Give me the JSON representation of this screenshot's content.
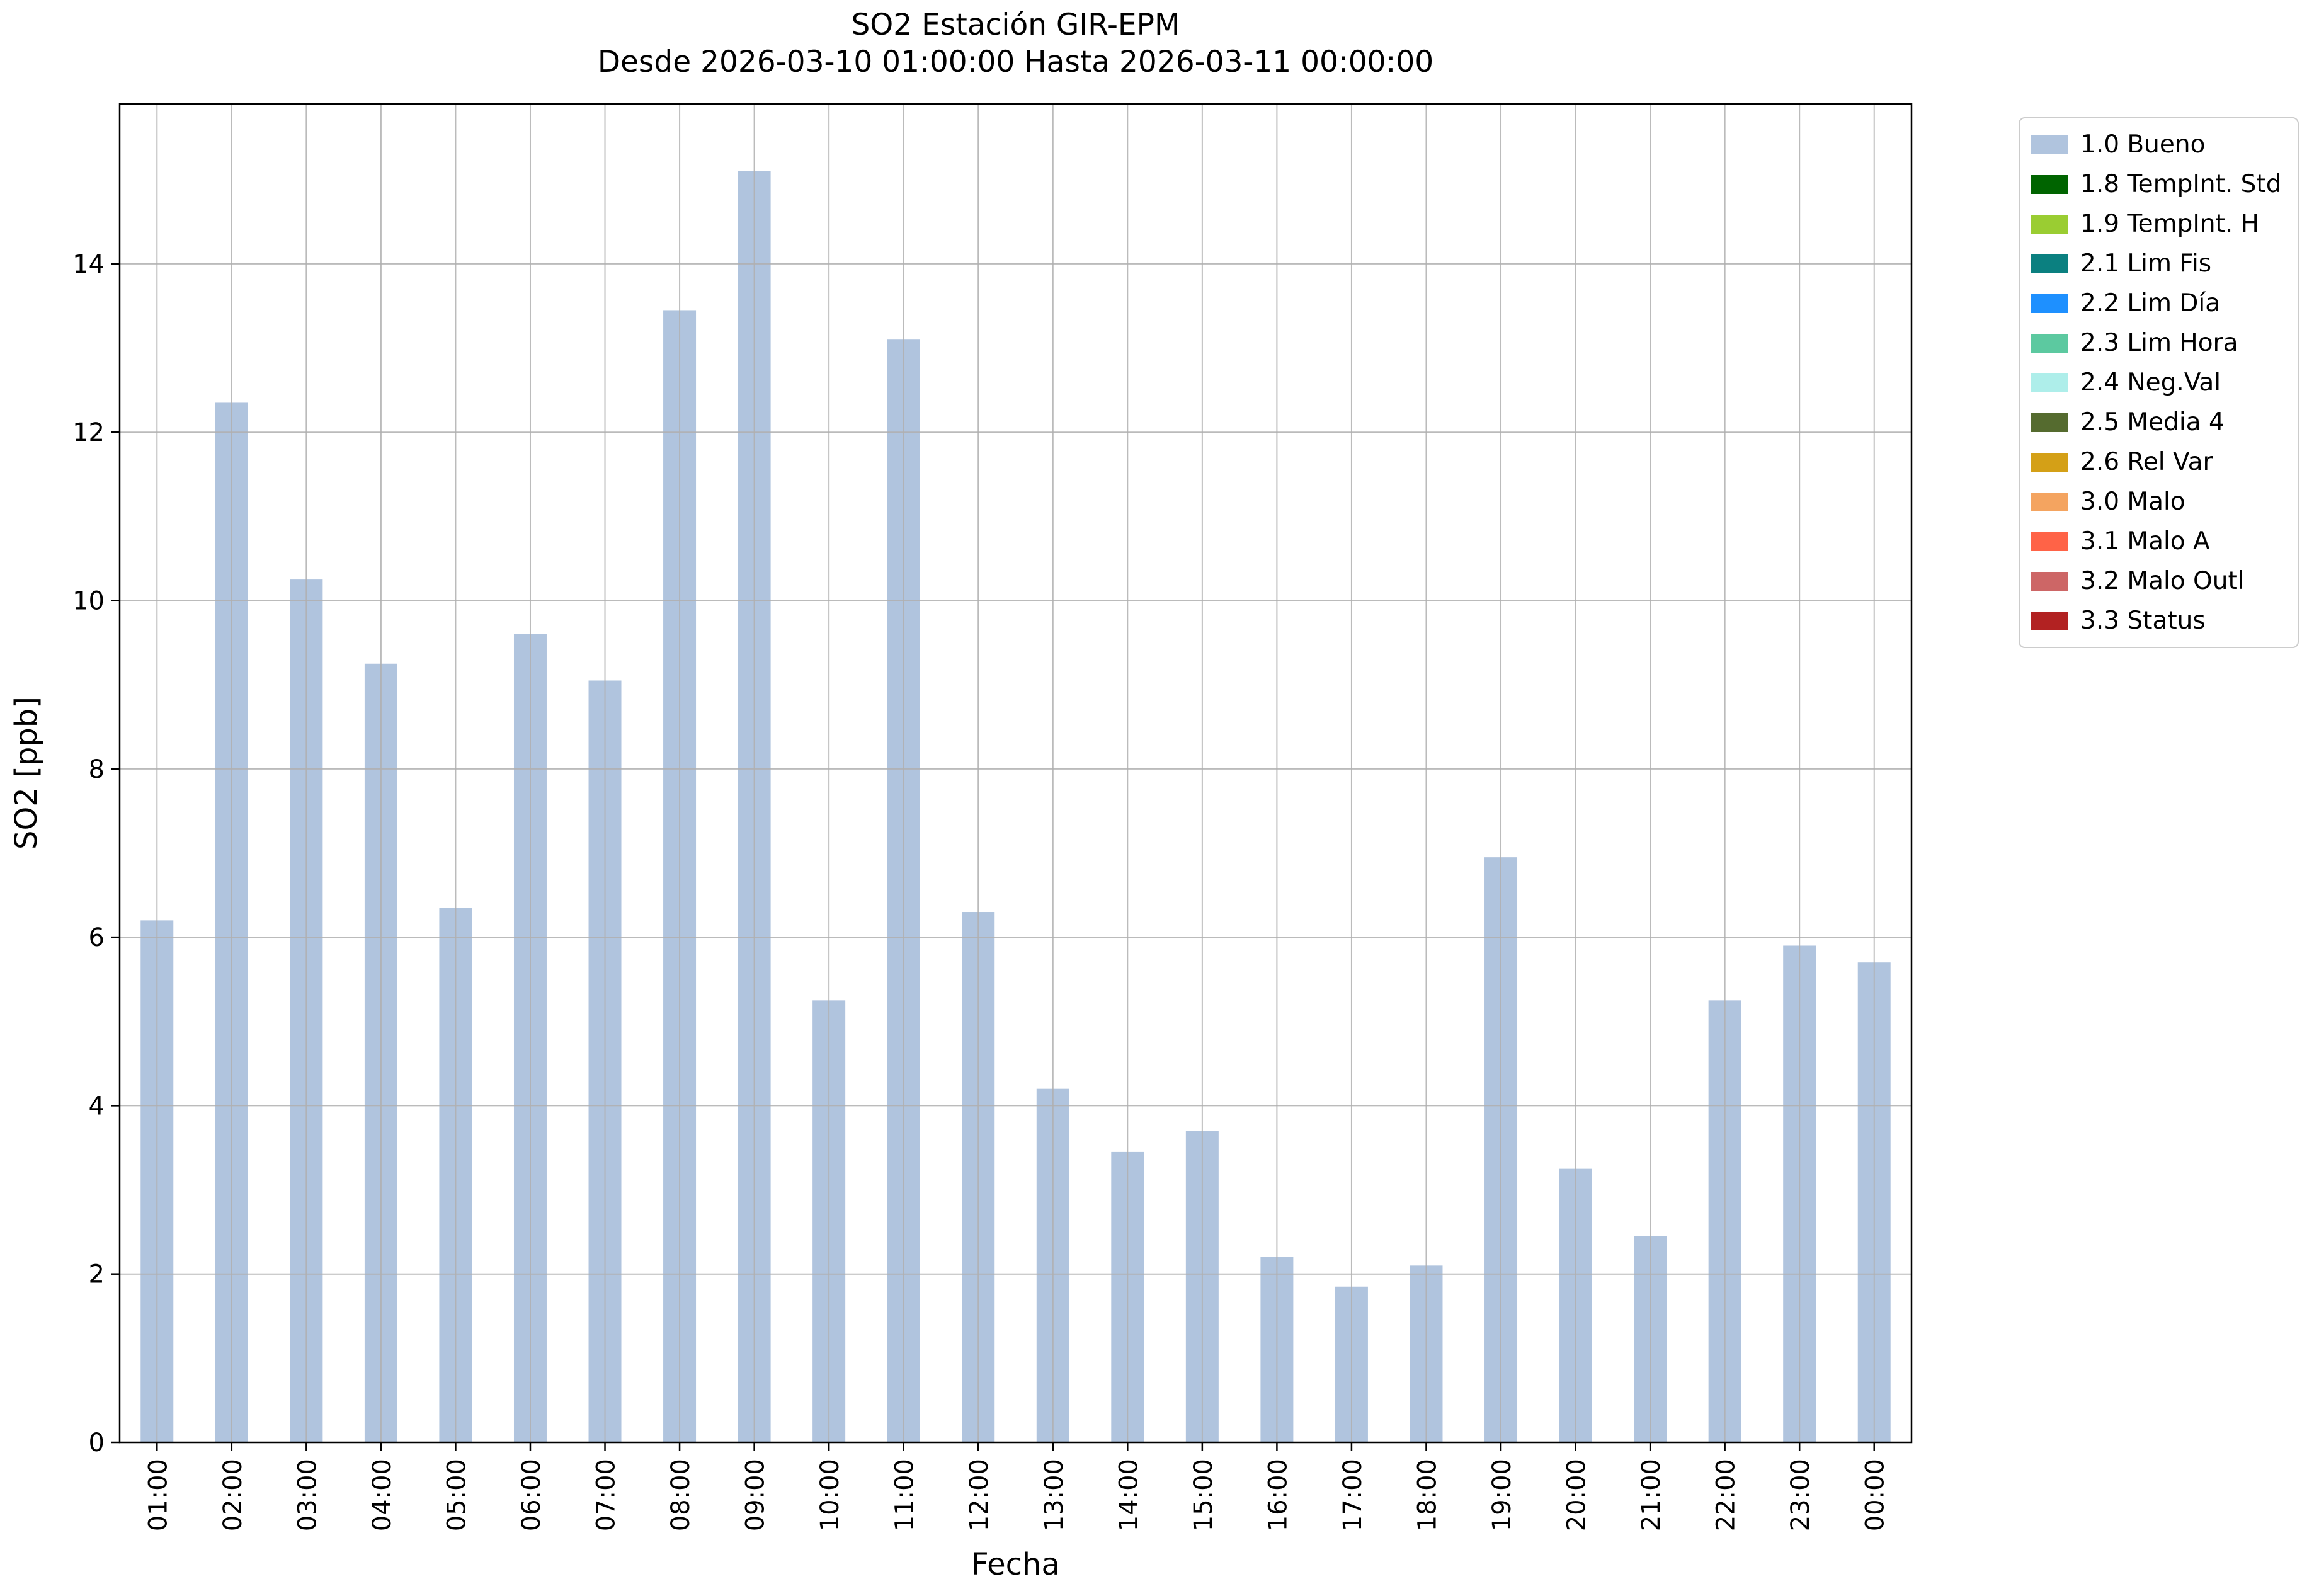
{
  "chart_data": {
    "type": "bar",
    "title": "SO2 Estación GIR-EPM",
    "subtitle": "Desde 2026-03-10 01:00:00 Hasta 2026-03-11 00:00:00",
    "xlabel": "Fecha",
    "ylabel": "SO2 [ppb]",
    "categories": [
      "01:00",
      "02:00",
      "03:00",
      "04:00",
      "05:00",
      "06:00",
      "07:00",
      "08:00",
      "09:00",
      "10:00",
      "11:00",
      "12:00",
      "13:00",
      "14:00",
      "15:00",
      "16:00",
      "17:00",
      "18:00",
      "19:00",
      "20:00",
      "21:00",
      "22:00",
      "23:00",
      "00:00"
    ],
    "values": [
      6.2,
      12.35,
      10.25,
      9.25,
      6.35,
      9.6,
      9.05,
      13.45,
      15.1,
      5.25,
      13.1,
      6.3,
      4.2,
      3.45,
      3.7,
      2.2,
      1.85,
      2.1,
      6.95,
      3.25,
      2.45,
      5.25,
      5.9,
      5.7
    ],
    "bar_color": "#b0c4de",
    "grid_color": "#b0b0b0",
    "axis_color": "#000000",
    "ylim": [
      0,
      15.9
    ],
    "yticks": [
      0,
      2,
      4,
      6,
      8,
      10,
      12,
      14
    ],
    "grid": true,
    "legend_position": "outside upper right",
    "legend": [
      {
        "label": "1.0 Bueno",
        "color": "#b0c4de"
      },
      {
        "label": "1.8 TempInt. Std",
        "color": "#006400"
      },
      {
        "label": "1.9 TempInt. H",
        "color": "#9acd32"
      },
      {
        "label": "2.1 Lim Fis",
        "color": "#0b8080"
      },
      {
        "label": "2.2 Lim Día",
        "color": "#1e90ff"
      },
      {
        "label": "2.3 Lim Hora",
        "color": "#5cc9a0"
      },
      {
        "label": "2.4 Neg.Val",
        "color": "#aeeeea"
      },
      {
        "label": "2.5 Media 4",
        "color": "#556b2f"
      },
      {
        "label": "2.6 Rel Var",
        "color": "#d4a017"
      },
      {
        "label": "3.0 Malo",
        "color": "#f4a460"
      },
      {
        "label": "3.1 Malo A",
        "color": "#ff6347"
      },
      {
        "label": "3.2 Malo Outl",
        "color": "#cd6666"
      },
      {
        "label": "3.3 Status",
        "color": "#b22222"
      }
    ]
  }
}
